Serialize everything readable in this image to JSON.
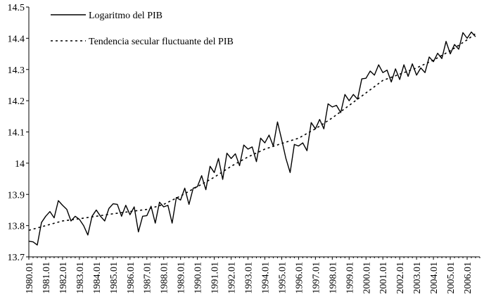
{
  "chart_data": {
    "type": "line",
    "title": "",
    "xlabel": "",
    "ylabel": "",
    "ylim": [
      13.7,
      14.5
    ],
    "yticks": [
      "13.7",
      "13.8",
      "13.9",
      "14",
      "14.1",
      "14.2",
      "14.3",
      "14.4",
      "14.5"
    ],
    "yticks_values": [
      13.7,
      13.8,
      13.9,
      14.0,
      14.1,
      14.2,
      14.3,
      14.4,
      14.5
    ],
    "xticks": [
      "1980.01",
      "1981.01",
      "1982.01",
      "1983.01",
      "1984.01",
      "1985.01",
      "1986.01",
      "1987.01",
      "1988.01",
      "1989.01",
      "1990.01",
      "1991.01",
      "1992.01",
      "1993.01",
      "1994.01",
      "1995.01",
      "1996.01",
      "1997.01",
      "1998.01",
      "1999.01",
      "2000.01",
      "2001.01",
      "2002.01",
      "2003.01",
      "2004.01",
      "2005.01",
      "2006.01"
    ],
    "xlim": [
      1980.0,
      2006.75
    ],
    "grid": false,
    "legend_position": "top-left",
    "series": [
      {
        "name": "Logaritmo del PIB",
        "style": "solid",
        "x": [
          1980.0,
          1980.25,
          1980.5,
          1980.75,
          1981.0,
          1981.25,
          1981.5,
          1981.75,
          1982.0,
          1982.25,
          1982.5,
          1982.75,
          1983.0,
          1983.25,
          1983.5,
          1983.75,
          1984.0,
          1984.25,
          1984.5,
          1984.75,
          1985.0,
          1985.25,
          1985.5,
          1985.75,
          1986.0,
          1986.25,
          1986.5,
          1986.75,
          1987.0,
          1987.25,
          1987.5,
          1987.75,
          1988.0,
          1988.25,
          1988.5,
          1988.75,
          1989.0,
          1989.25,
          1989.5,
          1989.75,
          1990.0,
          1990.25,
          1990.5,
          1990.75,
          1991.0,
          1991.25,
          1991.5,
          1991.75,
          1992.0,
          1992.25,
          1992.5,
          1992.75,
          1993.0,
          1993.25,
          1993.5,
          1993.75,
          1994.0,
          1994.25,
          1994.5,
          1994.75,
          1995.0,
          1995.25,
          1995.5,
          1995.75,
          1996.0,
          1996.25,
          1996.5,
          1996.75,
          1997.0,
          1997.25,
          1997.5,
          1997.75,
          1998.0,
          1998.25,
          1998.5,
          1998.75,
          1999.0,
          1999.25,
          1999.5,
          1999.75,
          2000.0,
          2000.25,
          2000.5,
          2000.75,
          2001.0,
          2001.25,
          2001.5,
          2001.75,
          2002.0,
          2002.25,
          2002.5,
          2002.75,
          2003.0,
          2003.25,
          2003.5,
          2003.75,
          2004.0,
          2004.25,
          2004.5,
          2004.75,
          2005.0,
          2005.25,
          2005.5,
          2005.75,
          2006.0,
          2006.25,
          2006.5
        ],
        "values": [
          13.75,
          13.748,
          13.738,
          13.81,
          13.83,
          13.845,
          13.825,
          13.88,
          13.865,
          13.852,
          13.815,
          13.83,
          13.82,
          13.8,
          13.77,
          13.83,
          13.85,
          13.83,
          13.815,
          13.855,
          13.87,
          13.868,
          13.83,
          13.865,
          13.835,
          13.86,
          13.78,
          13.83,
          13.832,
          13.862,
          13.808,
          13.875,
          13.86,
          13.865,
          13.808,
          13.89,
          13.882,
          13.92,
          13.868,
          13.92,
          13.925,
          13.96,
          13.915,
          13.99,
          13.97,
          14.015,
          13.948,
          14.032,
          14.015,
          14.03,
          13.992,
          14.058,
          14.045,
          14.052,
          14.005,
          14.08,
          14.065,
          14.09,
          14.055,
          14.132,
          14.075,
          14.015,
          13.97,
          14.06,
          14.055,
          14.065,
          14.04,
          14.13,
          14.11,
          14.14,
          14.11,
          14.19,
          14.18,
          14.185,
          14.162,
          14.22,
          14.2,
          14.22,
          14.205,
          14.27,
          14.272,
          14.295,
          14.282,
          14.315,
          14.29,
          14.298,
          14.26,
          14.302,
          14.268,
          14.315,
          14.278,
          14.318,
          14.282,
          14.305,
          14.29,
          14.34,
          14.325,
          14.352,
          14.335,
          14.39,
          14.35,
          14.38,
          14.365,
          14.418,
          14.4,
          14.42,
          14.405
        ]
      },
      {
        "name": "Tendencia secular fluctuante del PIB",
        "style": "dotted",
        "x": [
          1980.0,
          1981.0,
          1982.0,
          1983.0,
          1984.0,
          1985.0,
          1986.0,
          1987.0,
          1988.0,
          1989.0,
          1990.0,
          1991.0,
          1992.0,
          1993.0,
          1994.0,
          1995.0,
          1996.0,
          1997.0,
          1998.0,
          1999.0,
          2000.0,
          2001.0,
          2002.0,
          2003.0,
          2004.0,
          2005.0,
          2006.0,
          2006.5
        ],
        "values": [
          13.785,
          13.8,
          13.815,
          13.822,
          13.83,
          13.838,
          13.845,
          13.852,
          13.868,
          13.895,
          13.925,
          13.955,
          13.99,
          14.02,
          14.045,
          14.063,
          14.08,
          14.11,
          14.145,
          14.185,
          14.225,
          14.265,
          14.285,
          14.305,
          14.33,
          14.36,
          14.395,
          14.415
        ]
      }
    ]
  }
}
